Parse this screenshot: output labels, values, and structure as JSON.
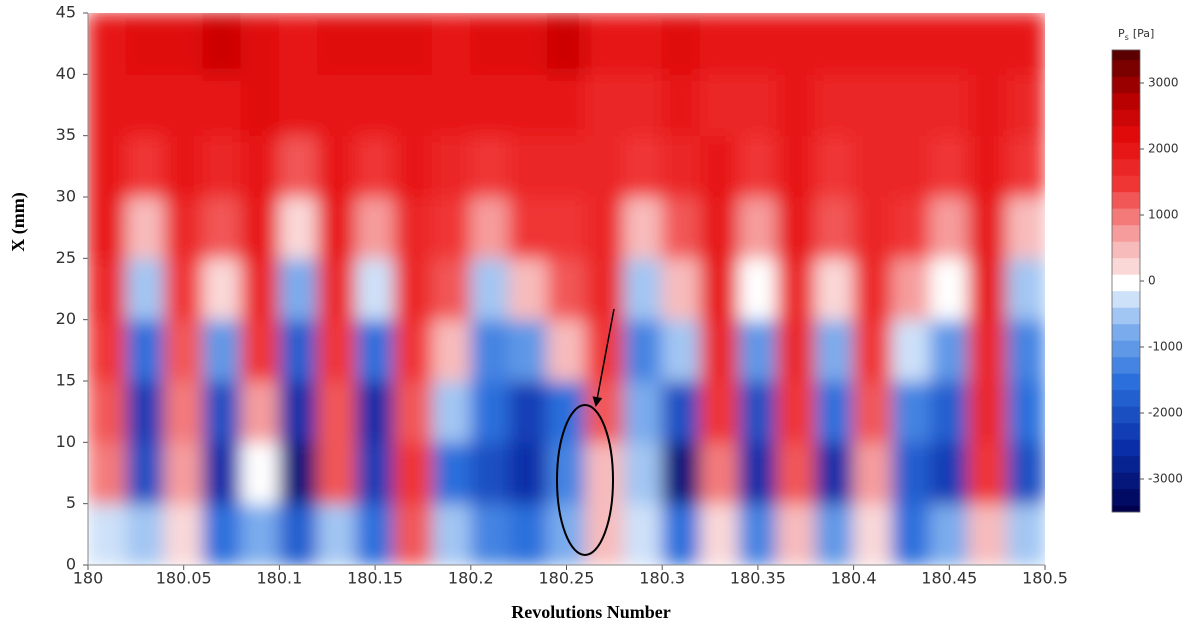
{
  "chart_data": {
    "type": "heatmap",
    "xlabel": "Revolutions Number",
    "ylabel": "X (mm)",
    "colorbar_label": {
      "symbol": "P",
      "subscript": "s",
      "unit": "[Pa]"
    },
    "xlim": [
      180,
      180.5
    ],
    "xticks": [
      180,
      180.05,
      180.1,
      180.15,
      180.2,
      180.25,
      180.3,
      180.35,
      180.4,
      180.45,
      180.5
    ],
    "ylim": [
      0,
      45
    ],
    "yticks": [
      0,
      5,
      10,
      15,
      20,
      25,
      30,
      35,
      40,
      45
    ],
    "zlim": [
      -3500,
      3500
    ],
    "zticks": [
      -3000,
      -2000,
      -1000,
      0,
      1000,
      2000,
      3000
    ],
    "x": [
      180.01,
      180.03,
      180.05,
      180.07,
      180.09,
      180.11,
      180.13,
      180.15,
      180.17,
      180.19,
      180.21,
      180.23,
      180.25,
      180.27,
      180.29,
      180.31,
      180.33,
      180.35,
      180.37,
      180.39,
      180.41,
      180.43,
      180.45,
      180.47,
      180.49
    ],
    "y": [
      2.5,
      7.5,
      12.5,
      17.5,
      22.5,
      27.5,
      32.5,
      37.5,
      42.5
    ],
    "z": [
      [
        -300,
        -600,
        200,
        -1500,
        -800,
        -1800,
        -500,
        -1500,
        1200,
        -600,
        -1200,
        -1500,
        -800,
        400,
        -300,
        -1500,
        200,
        -1200,
        600,
        -1000,
        300,
        -1400,
        -800,
        600,
        -600
      ],
      [
        1000,
        -2000,
        800,
        -2500,
        0,
        -3000,
        1200,
        -2200,
        1500,
        -1500,
        -2000,
        -2500,
        -1200,
        600,
        -500,
        -3000,
        1000,
        -2500,
        1200,
        -2500,
        800,
        -1800,
        -2200,
        1500,
        -2000
      ],
      [
        1200,
        -2200,
        1000,
        -2000,
        800,
        -2500,
        1300,
        -2500,
        1200,
        -500,
        -1500,
        -2200,
        -1500,
        1200,
        -800,
        -2000,
        1400,
        -2000,
        1500,
        -1500,
        1200,
        -1200,
        -1800,
        1700,
        -1500
      ],
      [
        1500,
        -1500,
        1200,
        -1000,
        1500,
        -1800,
        1600,
        -1500,
        1500,
        500,
        -1200,
        -1000,
        500,
        1500,
        -1200,
        -500,
        1800,
        -1000,
        1700,
        -800,
        1500,
        -300,
        -1000,
        1800,
        -1200
      ],
      [
        1800,
        -500,
        1500,
        300,
        1800,
        -800,
        1800,
        -300,
        1700,
        1200,
        -500,
        500,
        1300,
        1700,
        -500,
        600,
        2000,
        0,
        1800,
        300,
        1700,
        800,
        0,
        2000,
        -500
      ],
      [
        2000,
        600,
        1800,
        1200,
        2000,
        300,
        2000,
        800,
        1800,
        1600,
        800,
        1400,
        1600,
        1800,
        600,
        1300,
        2000,
        800,
        1900,
        1200,
        1800,
        1500,
        800,
        2000,
        500
      ],
      [
        2000,
        1500,
        1900,
        1800,
        2100,
        1300,
        2100,
        1500,
        1900,
        1800,
        1600,
        1800,
        1700,
        1800,
        1400,
        1700,
        2000,
        1500,
        1900,
        1600,
        1800,
        1800,
        1500,
        1900,
        1400
      ],
      [
        1900,
        1900,
        2000,
        2100,
        2200,
        1900,
        2100,
        1900,
        2000,
        1900,
        1900,
        1900,
        2000,
        1800,
        1800,
        1900,
        1800,
        1700,
        1900,
        1800,
        1800,
        1800,
        1800,
        1900,
        1800
      ],
      [
        2100,
        2200,
        2300,
        2400,
        2200,
        2100,
        2300,
        2200,
        2200,
        2100,
        2300,
        2200,
        2400,
        2000,
        2100,
        2200,
        2000,
        2100,
        2000,
        1900,
        2000,
        2000,
        2100,
        2000,
        2100
      ]
    ]
  }
}
